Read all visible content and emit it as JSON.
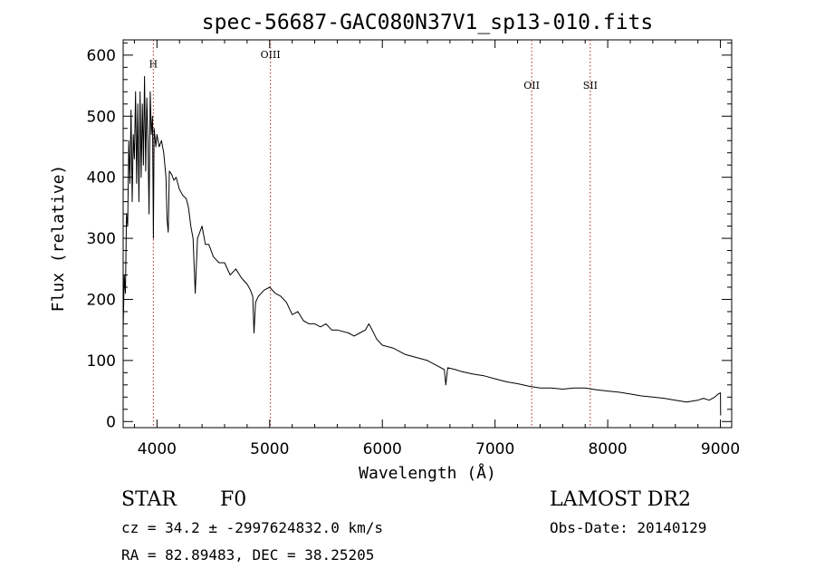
{
  "chart_data": {
    "type": "line",
    "title": "spec-56687-GAC080N37V1_sp13-010.fits",
    "xlabel": "Wavelength (Å)",
    "ylabel": "Flux (relative)",
    "xlim": [
      3700,
      9100
    ],
    "ylim": [
      -10,
      625
    ],
    "xticks": [
      4000,
      5000,
      6000,
      7000,
      8000,
      9000
    ],
    "yticks": [
      0,
      100,
      200,
      300,
      400,
      500,
      600
    ],
    "emission_lines": [
      {
        "name": "H",
        "wavelength": 3968,
        "label_flux": 580
      },
      {
        "name": "OIII",
        "wavelength": 5007,
        "label_flux": 595
      },
      {
        "name": "OII",
        "wavelength": 7325,
        "label_flux": 545
      },
      {
        "name": "SII",
        "wavelength": 7845,
        "label_flux": 545
      }
    ],
    "series": [
      {
        "values": [
          [
            3700,
            150
          ],
          [
            3710,
            240
          ],
          [
            3720,
            210
          ],
          [
            3730,
            340
          ],
          [
            3740,
            320
          ],
          [
            3750,
            460
          ],
          [
            3760,
            390
          ],
          [
            3770,
            510
          ],
          [
            3780,
            360
          ],
          [
            3790,
            470
          ],
          [
            3800,
            430
          ],
          [
            3810,
            540
          ],
          [
            3820,
            390
          ],
          [
            3830,
            520
          ],
          [
            3840,
            360
          ],
          [
            3850,
            540
          ],
          [
            3860,
            400
          ],
          [
            3870,
            520
          ],
          [
            3880,
            420
          ],
          [
            3890,
            565
          ],
          [
            3900,
            410
          ],
          [
            3910,
            530
          ],
          [
            3920,
            460
          ],
          [
            3930,
            340
          ],
          [
            3940,
            540
          ],
          [
            3950,
            470
          ],
          [
            3960,
            500
          ],
          [
            3968,
            300
          ],
          [
            3975,
            480
          ],
          [
            3990,
            450
          ],
          [
            4000,
            470
          ],
          [
            4020,
            450
          ],
          [
            4040,
            460
          ],
          [
            4060,
            440
          ],
          [
            4080,
            400
          ],
          [
            4090,
            330
          ],
          [
            4100,
            310
          ],
          [
            4110,
            410
          ],
          [
            4130,
            405
          ],
          [
            4150,
            395
          ],
          [
            4170,
            400
          ],
          [
            4200,
            380
          ],
          [
            4230,
            370
          ],
          [
            4260,
            365
          ],
          [
            4280,
            350
          ],
          [
            4300,
            320
          ],
          [
            4320,
            300
          ],
          [
            4340,
            210
          ],
          [
            4360,
            300
          ],
          [
            4380,
            310
          ],
          [
            4400,
            320
          ],
          [
            4430,
            290
          ],
          [
            4460,
            290
          ],
          [
            4500,
            270
          ],
          [
            4550,
            260
          ],
          [
            4600,
            260
          ],
          [
            4650,
            240
          ],
          [
            4700,
            250
          ],
          [
            4750,
            235
          ],
          [
            4800,
            225
          ],
          [
            4830,
            215
          ],
          [
            4850,
            205
          ],
          [
            4861,
            145
          ],
          [
            4875,
            195
          ],
          [
            4900,
            205
          ],
          [
            4950,
            215
          ],
          [
            5000,
            220
          ],
          [
            5050,
            210
          ],
          [
            5100,
            205
          ],
          [
            5150,
            195
          ],
          [
            5200,
            175
          ],
          [
            5250,
            180
          ],
          [
            5300,
            165
          ],
          [
            5350,
            160
          ],
          [
            5400,
            160
          ],
          [
            5450,
            155
          ],
          [
            5500,
            160
          ],
          [
            5550,
            150
          ],
          [
            5600,
            150
          ],
          [
            5700,
            145
          ],
          [
            5750,
            140
          ],
          [
            5800,
            145
          ],
          [
            5850,
            150
          ],
          [
            5880,
            160
          ],
          [
            5910,
            150
          ],
          [
            5950,
            135
          ],
          [
            6000,
            125
          ],
          [
            6100,
            120
          ],
          [
            6200,
            110
          ],
          [
            6300,
            105
          ],
          [
            6400,
            100
          ],
          [
            6500,
            90
          ],
          [
            6550,
            85
          ],
          [
            6563,
            60
          ],
          [
            6580,
            88
          ],
          [
            6650,
            85
          ],
          [
            6700,
            82
          ],
          [
            6800,
            78
          ],
          [
            6900,
            75
          ],
          [
            7000,
            70
          ],
          [
            7100,
            65
          ],
          [
            7200,
            62
          ],
          [
            7300,
            58
          ],
          [
            7400,
            55
          ],
          [
            7500,
            55
          ],
          [
            7600,
            53
          ],
          [
            7700,
            55
          ],
          [
            7800,
            55
          ],
          [
            7900,
            52
          ],
          [
            8000,
            50
          ],
          [
            8100,
            48
          ],
          [
            8200,
            45
          ],
          [
            8300,
            42
          ],
          [
            8400,
            40
          ],
          [
            8500,
            38
          ],
          [
            8600,
            35
          ],
          [
            8700,
            32
          ],
          [
            8800,
            35
          ],
          [
            8850,
            38
          ],
          [
            8900,
            35
          ],
          [
            8950,
            40
          ],
          [
            8980,
            45
          ],
          [
            9000,
            47
          ],
          [
            9002,
            10
          ]
        ]
      }
    ]
  },
  "footer": {
    "class_label": "STAR",
    "subclass_label": "F0",
    "cz_line": "cz = 34.2 ± -2997624832.0 km/s",
    "radec_line": "RA =  82.89483, DEC =  38.25205",
    "survey_label": "LAMOST DR2",
    "obs_date_line": "Obs-Date: 20140129"
  }
}
